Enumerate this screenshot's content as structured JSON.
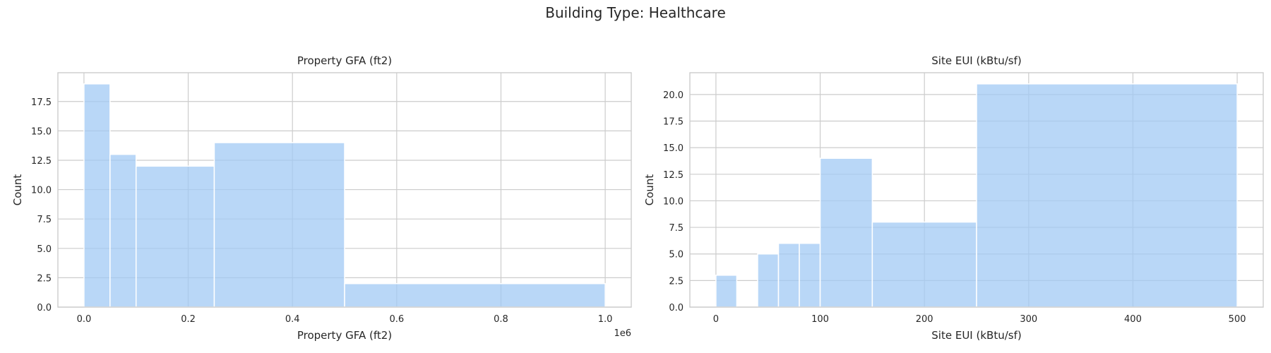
{
  "suptitle": "Building Type: Healthcare",
  "chart_data": [
    {
      "type": "bar",
      "subtype": "histogram",
      "title": "Property GFA (ft2)",
      "xlabel": "Property GFA (ft2)",
      "ylabel": "Count",
      "x_offset_text": "1e6",
      "xlim": [
        -0.05,
        1.05
      ],
      "ylim": [
        0,
        19.95
      ],
      "xticks": [
        0.0,
        0.2,
        0.4,
        0.6,
        0.8,
        1.0
      ],
      "xtick_labels": [
        "0.0",
        "0.2",
        "0.4",
        "0.6",
        "0.8",
        "1.0"
      ],
      "yticks": [
        0,
        2.5,
        5,
        7.5,
        10,
        12.5,
        15,
        17.5
      ],
      "ytick_labels": [
        "0.0",
        "2.5",
        "5.0",
        "7.5",
        "10.0",
        "12.5",
        "15.0",
        "17.5"
      ],
      "bin_edges": [
        0.0,
        0.05,
        0.1,
        0.25,
        0.5,
        1.0
      ],
      "values": [
        19,
        13,
        12,
        14,
        2
      ],
      "grid": true,
      "bar_color": "#a1c9f4"
    },
    {
      "type": "bar",
      "subtype": "histogram",
      "title": "Site EUI (kBtu/sf)",
      "xlabel": "Site EUI (kBtu/sf)",
      "ylabel": "Count",
      "xlim": [
        -25,
        525
      ],
      "ylim": [
        0,
        22.05
      ],
      "xticks": [
        0,
        100,
        200,
        300,
        400,
        500
      ],
      "xtick_labels": [
        "0",
        "100",
        "200",
        "300",
        "400",
        "500"
      ],
      "yticks": [
        0,
        2.5,
        5,
        7.5,
        10,
        12.5,
        15,
        17.5,
        20
      ],
      "ytick_labels": [
        "0.0",
        "2.5",
        "5.0",
        "7.5",
        "10.0",
        "12.5",
        "15.0",
        "17.5",
        "20.0"
      ],
      "bin_edges": [
        0,
        20,
        40,
        60,
        80,
        100,
        150,
        250,
        500
      ],
      "values": [
        3,
        0,
        5,
        6,
        6,
        14,
        8,
        21
      ],
      "grid": true,
      "bar_color": "#a1c9f4"
    }
  ]
}
